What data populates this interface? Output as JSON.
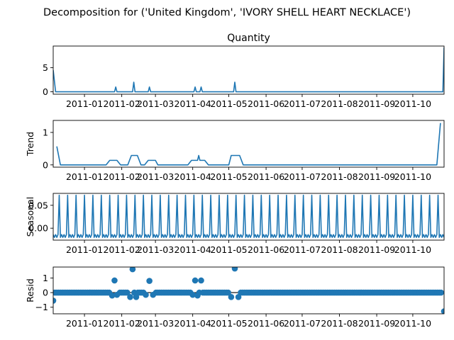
{
  "chart_data": {
    "suptitle": "Decomposition for ('United Kingdom', 'IVORY SHELL HEART NECKLACE')",
    "type": "line",
    "x_range": [
      "2010-12-06",
      "2011-10-27"
    ],
    "x_ticks": [
      "2011-01",
      "2011-02",
      "2011-03",
      "2011-04",
      "2011-05",
      "2011-06",
      "2011-07",
      "2011-08",
      "2011-09",
      "2011-10"
    ],
    "line_color": "#1f77b4",
    "panels": [
      {
        "name": "Quantity",
        "title": "Quantity",
        "ylabel": "",
        "type": "line",
        "ylim": [
          -0.5,
          9.5
        ],
        "yticks": [
          0,
          5
        ],
        "baseline": 0,
        "points": [
          [
            "2010-12-06",
            4.5
          ],
          [
            "2010-12-08",
            0
          ],
          [
            "2011-10-26",
            0
          ],
          [
            "2011-10-27",
            9.2
          ]
        ],
        "spikes": [
          [
            "2011-01-27",
            1
          ],
          [
            "2011-02-11",
            2
          ],
          [
            "2011-02-24",
            1
          ],
          [
            "2011-04-03",
            1
          ],
          [
            "2011-04-08",
            1
          ],
          [
            "2011-05-06",
            2
          ]
        ]
      },
      {
        "name": "Trend",
        "title": "",
        "ylabel": "Trend",
        "type": "line",
        "ylim": [
          -0.07,
          1.37
        ],
        "yticks": [
          0,
          1
        ],
        "points": [
          [
            "2010-12-09",
            0.57
          ],
          [
            "2010-12-12",
            0
          ],
          [
            "2011-01-19",
            0
          ],
          [
            "2011-01-22",
            0.14
          ],
          [
            "2011-01-28",
            0.14
          ],
          [
            "2011-01-31",
            0
          ],
          [
            "2011-02-06",
            0
          ],
          [
            "2011-02-09",
            0.29
          ],
          [
            "2011-02-14",
            0.29
          ],
          [
            "2011-02-17",
            0
          ],
          [
            "2011-02-20",
            0
          ],
          [
            "2011-02-23",
            0.14
          ],
          [
            "2011-02-29",
            0.14
          ],
          [
            "2011-03-03",
            0
          ],
          [
            "2011-03-28",
            0
          ],
          [
            "2011-03-31",
            0.14
          ],
          [
            "2011-04-05",
            0.14
          ],
          [
            "2011-04-06",
            0.29
          ],
          [
            "2011-04-07",
            0.14
          ],
          [
            "2011-04-11",
            0.14
          ],
          [
            "2011-04-14",
            0
          ],
          [
            "2011-05-01",
            0
          ],
          [
            "2011-05-03",
            0.29
          ],
          [
            "2011-05-10",
            0.29
          ],
          [
            "2011-05-13",
            0
          ],
          [
            "2011-10-21",
            0
          ],
          [
            "2011-10-24",
            1.29
          ]
        ]
      },
      {
        "name": "Seasonal",
        "title": "",
        "ylabel": "Seasonal",
        "type": "line",
        "ylim": [
          -0.026,
          0.076
        ],
        "yticks": [
          0.0,
          0.05
        ],
        "ytick_labels": [
          "0.00",
          "0.05"
        ],
        "seasonal": {
          "start": "2010-12-06",
          "end": "2011-10-27",
          "period_days": 7,
          "pattern": [
            -0.014,
            -0.02,
            -0.014,
            -0.02,
            -0.014,
            0.072,
            -0.02
          ]
        }
      },
      {
        "name": "Resid",
        "title": "",
        "ylabel": "Resid",
        "type": "scatter",
        "ylim": [
          -1.45,
          1.75
        ],
        "yticks": [
          -1,
          0,
          1
        ],
        "ytick_labels": [
          "−1",
          "0",
          "1"
        ],
        "baseline": 0,
        "scatter_range": [
          "2010-12-06",
          "2011-10-27"
        ],
        "scatter_step_days": 1.5,
        "points": [
          [
            "2010-12-06",
            -0.55
          ],
          [
            "2011-01-24",
            -0.2
          ],
          [
            "2011-01-26",
            0.83
          ],
          [
            "2011-01-28",
            -0.15
          ],
          [
            "2011-02-08",
            -0.3
          ],
          [
            "2011-02-10",
            1.6
          ],
          [
            "2011-02-13",
            -0.3
          ],
          [
            "2011-02-21",
            -0.15
          ],
          [
            "2011-02-24",
            0.8
          ],
          [
            "2011-02-27",
            -0.15
          ],
          [
            "2011-04-01",
            -0.15
          ],
          [
            "2011-04-03",
            0.83
          ],
          [
            "2011-04-05",
            -0.2
          ],
          [
            "2011-04-08",
            0.83
          ],
          [
            "2011-05-03",
            -0.3
          ],
          [
            "2011-05-06",
            1.65
          ],
          [
            "2011-05-09",
            -0.3
          ],
          [
            "2011-10-27",
            -1.28
          ]
        ]
      }
    ]
  }
}
